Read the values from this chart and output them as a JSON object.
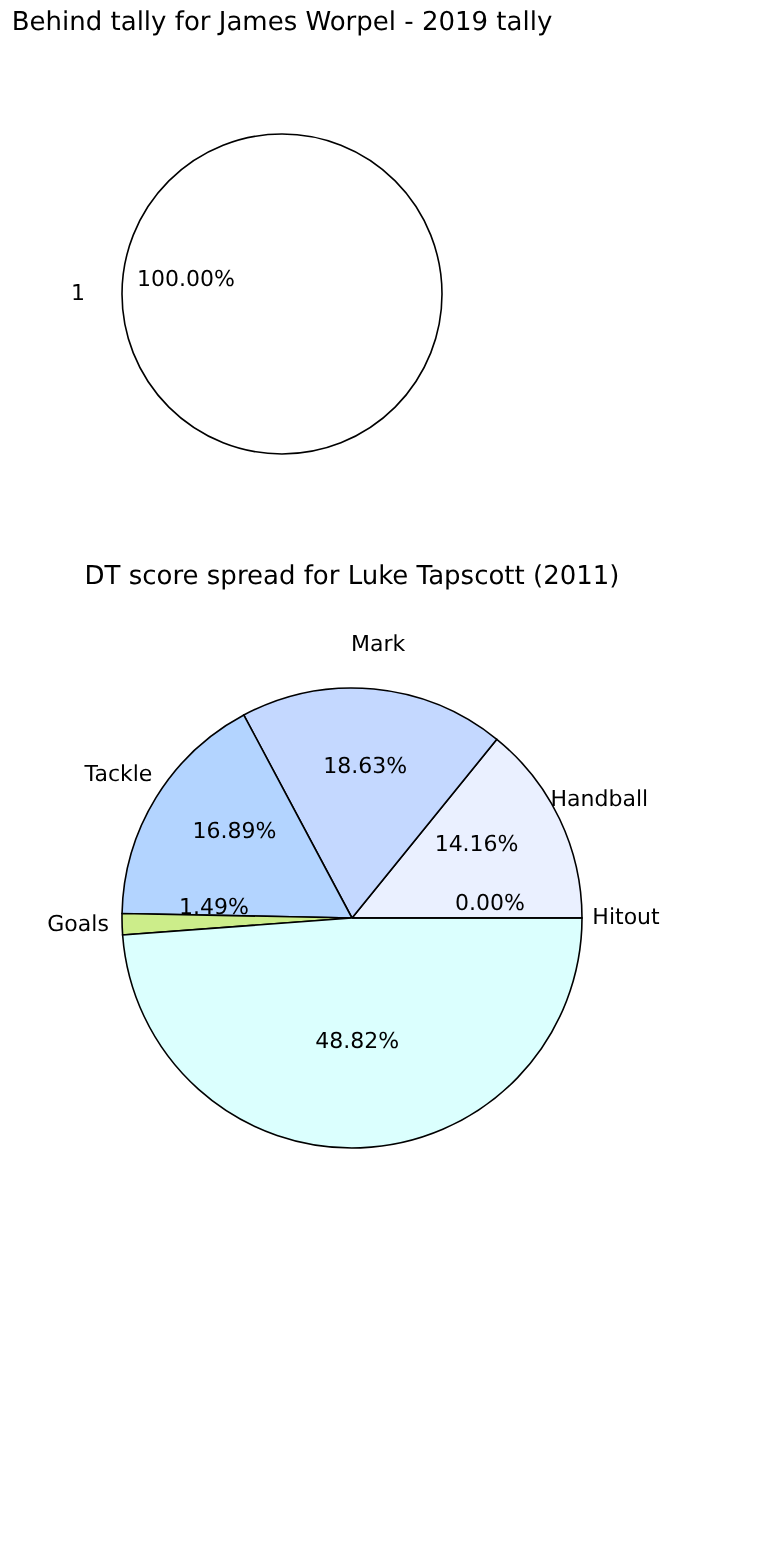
{
  "chart_data": [
    {
      "type": "pie",
      "title": "Behind tally for James Worpel - 2019 tally",
      "categories": [
        "1"
      ],
      "values": [
        100
      ],
      "colors": [
        "#ffffff"
      ],
      "value_labels": [
        "100.00%"
      ]
    },
    {
      "type": "pie",
      "title": "DT score spread for Luke Tapscott (2011)",
      "categories": [
        "Handball",
        "Mark",
        "Tackle",
        "Goals",
        null,
        "Hitout"
      ],
      "values": [
        14.16,
        18.63,
        16.89,
        1.49,
        48.82,
        0.0
      ],
      "colors": [
        "#eaf0ff",
        "#c4d8ff",
        "#b3d4ff",
        "#cced8a",
        "#dbfffe",
        "#ffffff"
      ],
      "value_labels": [
        "14.16%",
        "18.63%",
        "16.89%",
        "1.49%",
        "48.82%",
        "0.00%"
      ]
    }
  ]
}
